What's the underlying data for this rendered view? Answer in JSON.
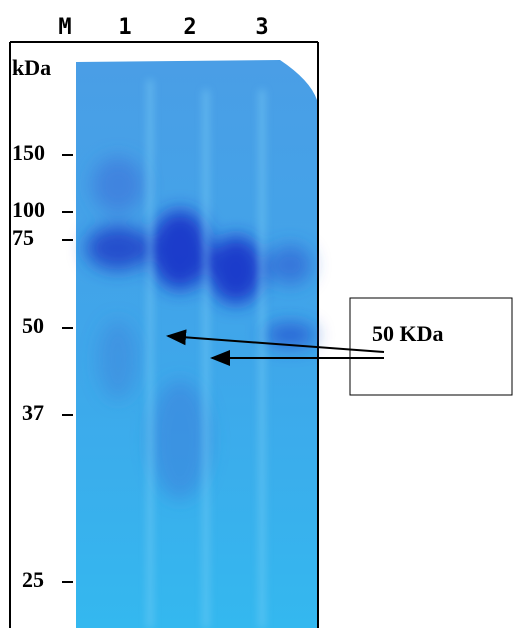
{
  "lanes": [
    "M",
    "1",
    "2",
    "3"
  ],
  "unit": "kDa",
  "markers": [
    "150",
    "100",
    "75",
    "50",
    "37",
    "25"
  ],
  "annotation": "50 KDa"
}
